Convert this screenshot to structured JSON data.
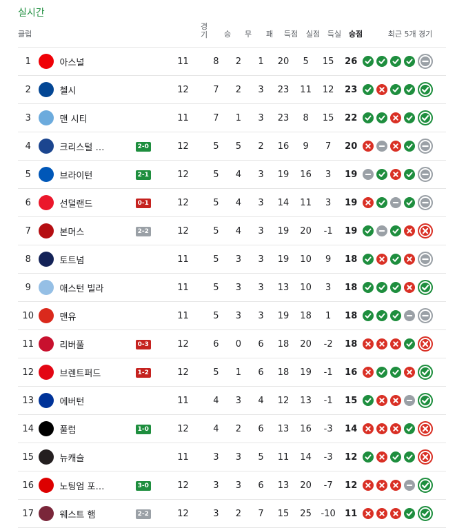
{
  "title": "실시간",
  "header": {
    "club": "클럽",
    "played": "경기",
    "won": "승",
    "drawn": "무",
    "lost": "패",
    "gf": "득점",
    "ga": "실점",
    "gd": "득실",
    "points": "승점",
    "form": "최근 5개 경기"
  },
  "colors": {
    "ucl": "#4285f4",
    "uel": "#fa7b17",
    "win": "#1e8e3e",
    "loss": "#d93025",
    "draw": "#9aa0a6"
  },
  "rows": [
    {
      "pos": "1",
      "club": "아스널",
      "badge": "",
      "badge_type": "",
      "p": "11",
      "w": "8",
      "d": "2",
      "l": "1",
      "gf": "20",
      "ga": "5",
      "gd": "15",
      "pts": "26",
      "form": [
        "W",
        "W",
        "W",
        "W",
        "D"
      ],
      "bar": "ucl",
      "logo": "#ef0107"
    },
    {
      "pos": "2",
      "club": "첼시",
      "badge": "",
      "badge_type": "",
      "p": "12",
      "w": "7",
      "d": "2",
      "l": "3",
      "gf": "23",
      "ga": "11",
      "gd": "12",
      "pts": "23",
      "form": [
        "W",
        "L",
        "W",
        "W",
        "W"
      ],
      "bar": "ucl",
      "logo": "#034694"
    },
    {
      "pos": "3",
      "club": "맨 시티",
      "badge": "",
      "badge_type": "",
      "p": "11",
      "w": "7",
      "d": "1",
      "l": "3",
      "gf": "23",
      "ga": "8",
      "gd": "15",
      "pts": "22",
      "form": [
        "W",
        "W",
        "L",
        "W",
        "W"
      ],
      "bar": "ucl",
      "logo": "#6cabdd"
    },
    {
      "pos": "4",
      "club": "크리스털 …",
      "badge": "2-0",
      "badge_type": "win",
      "p": "12",
      "w": "5",
      "d": "5",
      "l": "2",
      "gf": "16",
      "ga": "9",
      "gd": "7",
      "pts": "20",
      "form": [
        "L",
        "D",
        "L",
        "W",
        "D"
      ],
      "bar": "ucl",
      "logo": "#1b458f"
    },
    {
      "pos": "5",
      "club": "브라이턴",
      "badge": "2-1",
      "badge_type": "win",
      "p": "12",
      "w": "5",
      "d": "4",
      "l": "3",
      "gf": "19",
      "ga": "16",
      "gd": "3",
      "pts": "19",
      "form": [
        "D",
        "W",
        "L",
        "W",
        "D"
      ],
      "bar": "uel",
      "logo": "#0057b8"
    },
    {
      "pos": "6",
      "club": "선덜랜드",
      "badge": "0-1",
      "badge_type": "loss",
      "p": "12",
      "w": "5",
      "d": "4",
      "l": "3",
      "gf": "14",
      "ga": "11",
      "gd": "3",
      "pts": "19",
      "form": [
        "L",
        "W",
        "D",
        "W",
        "D"
      ],
      "bar": "",
      "logo": "#eb172b"
    },
    {
      "pos": "7",
      "club": "본머스",
      "badge": "2-2",
      "badge_type": "draw",
      "p": "12",
      "w": "5",
      "d": "4",
      "l": "3",
      "gf": "19",
      "ga": "20",
      "gd": "-1",
      "pts": "19",
      "form": [
        "W",
        "D",
        "W",
        "L",
        "L"
      ],
      "bar": "",
      "logo": "#b50e12"
    },
    {
      "pos": "8",
      "club": "토트넘",
      "badge": "",
      "badge_type": "",
      "p": "11",
      "w": "5",
      "d": "3",
      "l": "3",
      "gf": "19",
      "ga": "10",
      "gd": "9",
      "pts": "18",
      "form": [
        "W",
        "L",
        "W",
        "L",
        "D"
      ],
      "bar": "",
      "logo": "#132257"
    },
    {
      "pos": "9",
      "club": "애스턴 빌라",
      "badge": "",
      "badge_type": "",
      "p": "11",
      "w": "5",
      "d": "3",
      "l": "3",
      "gf": "13",
      "ga": "10",
      "gd": "3",
      "pts": "18",
      "form": [
        "W",
        "W",
        "W",
        "L",
        "W"
      ],
      "bar": "",
      "logo": "#95bfe5"
    },
    {
      "pos": "10",
      "club": "맨유",
      "badge": "",
      "badge_type": "",
      "p": "11",
      "w": "5",
      "d": "3",
      "l": "3",
      "gf": "19",
      "ga": "18",
      "gd": "1",
      "pts": "18",
      "form": [
        "W",
        "W",
        "W",
        "D",
        "D"
      ],
      "bar": "",
      "logo": "#da291c"
    },
    {
      "pos": "11",
      "club": "리버풀",
      "badge": "0-3",
      "badge_type": "loss",
      "p": "12",
      "w": "6",
      "d": "0",
      "l": "6",
      "gf": "18",
      "ga": "20",
      "gd": "-2",
      "pts": "18",
      "form": [
        "L",
        "L",
        "L",
        "W",
        "L"
      ],
      "bar": "",
      "logo": "#c8102e"
    },
    {
      "pos": "12",
      "club": "브렌트퍼드",
      "badge": "1-2",
      "badge_type": "loss",
      "p": "12",
      "w": "5",
      "d": "1",
      "l": "6",
      "gf": "18",
      "ga": "19",
      "gd": "-1",
      "pts": "16",
      "form": [
        "L",
        "W",
        "W",
        "L",
        "W"
      ],
      "bar": "",
      "logo": "#e30613"
    },
    {
      "pos": "13",
      "club": "에버턴",
      "badge": "",
      "badge_type": "",
      "p": "11",
      "w": "4",
      "d": "3",
      "l": "4",
      "gf": "12",
      "ga": "13",
      "gd": "-1",
      "pts": "15",
      "form": [
        "W",
        "L",
        "L",
        "D",
        "W"
      ],
      "bar": "",
      "logo": "#003399"
    },
    {
      "pos": "14",
      "club": "풀럼",
      "badge": "1-0",
      "badge_type": "win",
      "p": "12",
      "w": "4",
      "d": "2",
      "l": "6",
      "gf": "13",
      "ga": "16",
      "gd": "-3",
      "pts": "14",
      "form": [
        "L",
        "L",
        "L",
        "W",
        "L"
      ],
      "bar": "",
      "logo": "#000000"
    },
    {
      "pos": "15",
      "club": "뉴캐슬",
      "badge": "",
      "badge_type": "",
      "p": "11",
      "w": "3",
      "d": "3",
      "l": "5",
      "gf": "11",
      "ga": "14",
      "gd": "-3",
      "pts": "12",
      "form": [
        "W",
        "L",
        "W",
        "W",
        "L"
      ],
      "bar": "",
      "logo": "#241f20"
    },
    {
      "pos": "16",
      "club": "노팅엄 포…",
      "badge": "3-0",
      "badge_type": "win",
      "p": "12",
      "w": "3",
      "d": "3",
      "l": "6",
      "gf": "13",
      "ga": "20",
      "gd": "-7",
      "pts": "12",
      "form": [
        "L",
        "L",
        "L",
        "D",
        "W"
      ],
      "bar": "",
      "logo": "#dd0000"
    },
    {
      "pos": "17",
      "club": "웨스트 햄",
      "badge": "2-2",
      "badge_type": "draw",
      "p": "12",
      "w": "3",
      "d": "2",
      "l": "7",
      "gf": "15",
      "ga": "25",
      "gd": "-10",
      "pts": "11",
      "form": [
        "L",
        "L",
        "L",
        "W",
        "W"
      ],
      "bar": "",
      "logo": "#7a263a"
    }
  ]
}
